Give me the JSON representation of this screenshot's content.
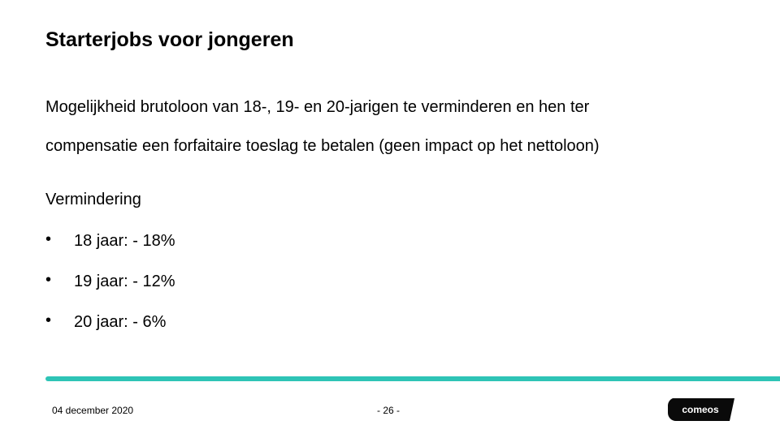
{
  "slide": {
    "title": "Starterjobs voor jongeren",
    "intro_line1": "Mogelijkheid brutoloon van 18-, 19- en 20-jarigen te verminderen en hen ter",
    "intro_line2": "compensatie een forfaitaire toeslag te betalen (geen impact op het nettoloon)",
    "subheading": "Vermindering",
    "bullets": [
      {
        "marker": "•",
        "text": "18 jaar: - 18%"
      },
      {
        "marker": "•",
        "text": "19 jaar: - 12%"
      },
      {
        "marker": "•",
        "text": "20 jaar: - 6%"
      }
    ]
  },
  "footer": {
    "date": "04 december 2020",
    "page": "- 26 -",
    "logo_text": "comeos"
  },
  "colors": {
    "accent": "#2ec4b6",
    "logo_bg": "#0a0a0a",
    "logo_text": "#ffffff"
  }
}
